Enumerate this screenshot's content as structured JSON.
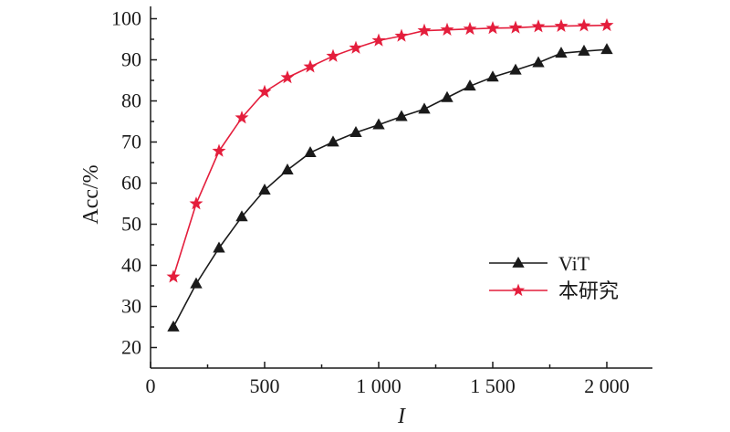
{
  "chart_data": {
    "type": "line",
    "xlabel": "I",
    "ylabel": "Acc/%",
    "xlim": [
      0,
      2200
    ],
    "ylim": [
      15,
      103
    ],
    "x_ticks": [
      0,
      500,
      1000,
      1500,
      2000
    ],
    "x_tick_labels": [
      "0",
      "500",
      "1 000",
      "1 500",
      "2 000"
    ],
    "y_ticks": [
      20,
      30,
      40,
      50,
      60,
      70,
      80,
      90,
      100
    ],
    "y_tick_labels": [
      "20",
      "30",
      "40",
      "50",
      "60",
      "70",
      "80",
      "90",
      "100"
    ],
    "grid": false,
    "legend_position": "right-middle",
    "x": [
      100,
      200,
      300,
      400,
      500,
      600,
      700,
      800,
      900,
      1000,
      1100,
      1200,
      1300,
      1400,
      1500,
      1600,
      1700,
      1800,
      1900,
      2000
    ],
    "series": [
      {
        "name": "ViT",
        "marker": "triangle",
        "color": "#1a1a1a",
        "values": [
          25.0,
          35.5,
          44.2,
          51.8,
          58.3,
          63.2,
          67.4,
          70.0,
          72.3,
          74.2,
          76.2,
          78.0,
          80.8,
          83.6,
          85.8,
          87.5,
          89.3,
          91.6,
          92.1,
          92.5
        ]
      },
      {
        "name": "本研究",
        "marker": "star",
        "color": "#e41e3c",
        "values": [
          37.2,
          55.0,
          67.8,
          75.9,
          82.2,
          85.7,
          88.3,
          90.9,
          92.9,
          94.7,
          95.8,
          97.1,
          97.3,
          97.5,
          97.7,
          97.8,
          98.1,
          98.2,
          98.3,
          98.4
        ]
      }
    ]
  }
}
